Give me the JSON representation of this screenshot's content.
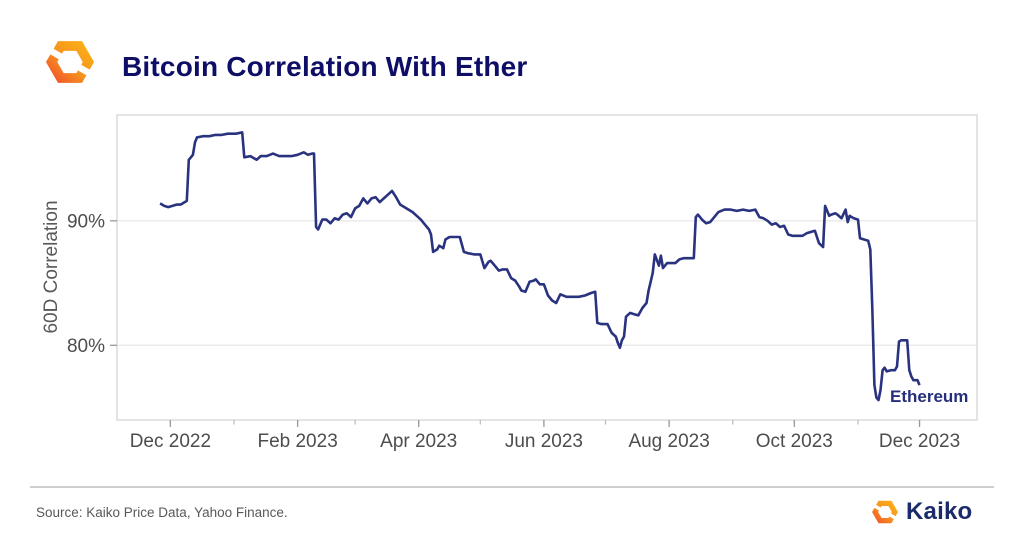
{
  "header": {
    "title": "Bitcoin Correlation With Ether"
  },
  "footer": {
    "source": "Source: Kaiko Price Data, Yahoo Finance.",
    "brand": "Kaiko"
  },
  "colors": {
    "title_navy": "#0E0E66",
    "line_navy": "#2A337F",
    "series_label_navy": "#252F7C",
    "brand_navy": "#1B2A6B",
    "axis_text_gray": "#4D4D4D",
    "axis_title_gray": "#595959",
    "grid_gray": "#EAEAEA",
    "border_gray": "#DBDBDB",
    "logo_orange_light": "#FBAF17",
    "logo_orange_mid": "#F6921E",
    "logo_orange_deep": "#F1582A"
  },
  "chart_data": {
    "type": "line",
    "title": "Bitcoin Correlation With Ether",
    "xlabel": "",
    "ylabel": "60D Correlation",
    "ylim": [
      74,
      98.5
    ],
    "x_domain": [
      "2022-11-05",
      "2023-12-29"
    ],
    "grid": "horizontal-only",
    "legend_position": "end-of-line",
    "y_ticks": [
      {
        "value": 90,
        "label": "90%"
      },
      {
        "value": 80,
        "label": "80%"
      }
    ],
    "x_ticks": [
      {
        "date": "2022-12-01",
        "label": "Dec 2022"
      },
      {
        "date": "2023-02-01",
        "label": "Feb 2023"
      },
      {
        "date": "2023-04-01",
        "label": "Apr 2023"
      },
      {
        "date": "2023-06-01",
        "label": "Jun 2023"
      },
      {
        "date": "2023-08-01",
        "label": "Aug 2023"
      },
      {
        "date": "2023-10-01",
        "label": "Oct 2023"
      },
      {
        "date": "2023-12-01",
        "label": "Dec 2023"
      }
    ],
    "series": [
      {
        "name": "Ethereum",
        "color": "#2A337F",
        "points": [
          [
            "2022-11-26",
            91.4
          ],
          [
            "2022-11-28",
            91.2
          ],
          [
            "2022-11-30",
            91.1
          ],
          [
            "2022-12-02",
            91.2
          ],
          [
            "2022-12-04",
            91.3
          ],
          [
            "2022-12-06",
            91.3
          ],
          [
            "2022-12-08",
            91.5
          ],
          [
            "2022-12-09",
            91.6
          ],
          [
            "2022-12-10",
            94.9
          ],
          [
            "2022-12-11",
            95.1
          ],
          [
            "2022-12-12",
            95.3
          ],
          [
            "2022-12-13",
            96.3
          ],
          [
            "2022-12-14",
            96.7
          ],
          [
            "2022-12-17",
            96.8
          ],
          [
            "2022-12-20",
            96.8
          ],
          [
            "2022-12-23",
            96.9
          ],
          [
            "2022-12-26",
            96.9
          ],
          [
            "2022-12-29",
            97.0
          ],
          [
            "2023-01-02",
            97.0
          ],
          [
            "2023-01-05",
            97.1
          ],
          [
            "2023-01-06",
            95.1
          ],
          [
            "2023-01-09",
            95.2
          ],
          [
            "2023-01-12",
            94.9
          ],
          [
            "2023-01-14",
            95.2
          ],
          [
            "2023-01-17",
            95.2
          ],
          [
            "2023-01-20",
            95.4
          ],
          [
            "2023-01-23",
            95.2
          ],
          [
            "2023-01-26",
            95.2
          ],
          [
            "2023-01-29",
            95.2
          ],
          [
            "2023-02-01",
            95.3
          ],
          [
            "2023-02-04",
            95.5
          ],
          [
            "2023-02-06",
            95.3
          ],
          [
            "2023-02-08",
            95.4
          ],
          [
            "2023-02-09",
            95.4
          ],
          [
            "2023-02-10",
            89.5
          ],
          [
            "2023-02-11",
            89.3
          ],
          [
            "2023-02-13",
            90.1
          ],
          [
            "2023-02-15",
            90.1
          ],
          [
            "2023-02-17",
            89.8
          ],
          [
            "2023-02-19",
            90.2
          ],
          [
            "2023-02-21",
            90.1
          ],
          [
            "2023-02-23",
            90.5
          ],
          [
            "2023-02-25",
            90.6
          ],
          [
            "2023-02-27",
            90.3
          ],
          [
            "2023-03-01",
            91.0
          ],
          [
            "2023-03-03",
            91.2
          ],
          [
            "2023-03-05",
            91.8
          ],
          [
            "2023-03-07",
            91.4
          ],
          [
            "2023-03-09",
            91.8
          ],
          [
            "2023-03-11",
            91.9
          ],
          [
            "2023-03-13",
            91.5
          ],
          [
            "2023-03-15",
            91.8
          ],
          [
            "2023-03-17",
            92.1
          ],
          [
            "2023-03-19",
            92.4
          ],
          [
            "2023-03-21",
            91.9
          ],
          [
            "2023-03-23",
            91.3
          ],
          [
            "2023-03-25",
            91.1
          ],
          [
            "2023-03-27",
            90.9
          ],
          [
            "2023-03-29",
            90.7
          ],
          [
            "2023-03-31",
            90.4
          ],
          [
            "2023-04-02",
            90.1
          ],
          [
            "2023-04-04",
            89.7
          ],
          [
            "2023-04-06",
            89.3
          ],
          [
            "2023-04-07",
            88.9
          ],
          [
            "2023-04-08",
            87.5
          ],
          [
            "2023-04-10",
            87.7
          ],
          [
            "2023-04-11",
            88.0
          ],
          [
            "2023-04-13",
            87.8
          ],
          [
            "2023-04-14",
            88.5
          ],
          [
            "2023-04-16",
            88.7
          ],
          [
            "2023-04-19",
            88.7
          ],
          [
            "2023-04-21",
            88.7
          ],
          [
            "2023-04-23",
            87.5
          ],
          [
            "2023-04-25",
            87.4
          ],
          [
            "2023-04-28",
            87.3
          ],
          [
            "2023-05-01",
            87.3
          ],
          [
            "2023-05-03",
            86.2
          ],
          [
            "2023-05-05",
            86.7
          ],
          [
            "2023-05-06",
            86.8
          ],
          [
            "2023-05-08",
            86.4
          ],
          [
            "2023-05-10",
            86.0
          ],
          [
            "2023-05-12",
            86.1
          ],
          [
            "2023-05-14",
            86.1
          ],
          [
            "2023-05-16",
            85.4
          ],
          [
            "2023-05-18",
            85.2
          ],
          [
            "2023-05-20",
            84.7
          ],
          [
            "2023-05-21",
            84.4
          ],
          [
            "2023-05-23",
            84.3
          ],
          [
            "2023-05-25",
            85.1
          ],
          [
            "2023-05-27",
            85.2
          ],
          [
            "2023-05-28",
            85.3
          ],
          [
            "2023-05-30",
            84.9
          ],
          [
            "2023-06-01",
            84.9
          ],
          [
            "2023-06-03",
            84.0
          ],
          [
            "2023-06-05",
            83.6
          ],
          [
            "2023-06-07",
            83.4
          ],
          [
            "2023-06-09",
            84.1
          ],
          [
            "2023-06-12",
            83.9
          ],
          [
            "2023-06-15",
            83.9
          ],
          [
            "2023-06-18",
            83.9
          ],
          [
            "2023-06-21",
            84.0
          ],
          [
            "2023-06-24",
            84.2
          ],
          [
            "2023-06-26",
            84.3
          ],
          [
            "2023-06-27",
            81.8
          ],
          [
            "2023-06-29",
            81.7
          ],
          [
            "2023-07-02",
            81.7
          ],
          [
            "2023-07-04",
            81.0
          ],
          [
            "2023-07-06",
            80.7
          ],
          [
            "2023-07-07",
            80.2
          ],
          [
            "2023-07-08",
            79.8
          ],
          [
            "2023-07-09",
            80.4
          ],
          [
            "2023-07-10",
            80.7
          ],
          [
            "2023-07-11",
            82.3
          ],
          [
            "2023-07-13",
            82.6
          ],
          [
            "2023-07-15",
            82.5
          ],
          [
            "2023-07-17",
            82.4
          ],
          [
            "2023-07-19",
            83.0
          ],
          [
            "2023-07-21",
            83.4
          ],
          [
            "2023-07-22",
            84.4
          ],
          [
            "2023-07-24",
            85.8
          ],
          [
            "2023-07-25",
            87.3
          ],
          [
            "2023-07-27",
            86.4
          ],
          [
            "2023-07-28",
            87.2
          ],
          [
            "2023-07-29",
            86.2
          ],
          [
            "2023-07-31",
            86.6
          ],
          [
            "2023-08-02",
            86.6
          ],
          [
            "2023-08-04",
            86.6
          ],
          [
            "2023-08-06",
            86.9
          ],
          [
            "2023-08-08",
            87.0
          ],
          [
            "2023-08-11",
            87.0
          ],
          [
            "2023-08-13",
            87.0
          ],
          [
            "2023-08-14",
            90.3
          ],
          [
            "2023-08-15",
            90.5
          ],
          [
            "2023-08-17",
            90.1
          ],
          [
            "2023-08-19",
            89.8
          ],
          [
            "2023-08-21",
            89.9
          ],
          [
            "2023-08-23",
            90.3
          ],
          [
            "2023-08-25",
            90.7
          ],
          [
            "2023-08-28",
            90.9
          ],
          [
            "2023-08-31",
            90.9
          ],
          [
            "2023-09-03",
            90.8
          ],
          [
            "2023-09-06",
            90.9
          ],
          [
            "2023-09-09",
            90.8
          ],
          [
            "2023-09-12",
            90.9
          ],
          [
            "2023-09-14",
            90.3
          ],
          [
            "2023-09-16",
            90.2
          ],
          [
            "2023-09-18",
            90.0
          ],
          [
            "2023-09-20",
            89.7
          ],
          [
            "2023-09-22",
            89.8
          ],
          [
            "2023-09-24",
            89.5
          ],
          [
            "2023-09-26",
            89.6
          ],
          [
            "2023-09-28",
            88.9
          ],
          [
            "2023-09-30",
            88.8
          ],
          [
            "2023-10-03",
            88.8
          ],
          [
            "2023-10-05",
            88.8
          ],
          [
            "2023-10-07",
            89.0
          ],
          [
            "2023-10-09",
            89.1
          ],
          [
            "2023-10-11",
            89.2
          ],
          [
            "2023-10-13",
            88.2
          ],
          [
            "2023-10-15",
            87.9
          ],
          [
            "2023-10-16",
            91.2
          ],
          [
            "2023-10-18",
            90.4
          ],
          [
            "2023-10-19",
            90.5
          ],
          [
            "2023-10-21",
            90.6
          ],
          [
            "2023-10-22",
            90.5
          ],
          [
            "2023-10-24",
            90.2
          ],
          [
            "2023-10-26",
            90.9
          ],
          [
            "2023-10-27",
            89.9
          ],
          [
            "2023-10-28",
            90.4
          ],
          [
            "2023-10-30",
            90.2
          ],
          [
            "2023-11-01",
            90.1
          ],
          [
            "2023-11-02",
            88.6
          ],
          [
            "2023-11-04",
            88.5
          ],
          [
            "2023-11-06",
            88.4
          ],
          [
            "2023-11-07",
            87.7
          ],
          [
            "2023-11-08",
            83.0
          ],
          [
            "2023-11-09",
            76.8
          ],
          [
            "2023-11-10",
            75.8
          ],
          [
            "2023-11-11",
            75.6
          ],
          [
            "2023-11-12",
            76.4
          ],
          [
            "2023-11-13",
            78.0
          ],
          [
            "2023-11-14",
            78.2
          ],
          [
            "2023-11-15",
            77.9
          ],
          [
            "2023-11-17",
            78.0
          ],
          [
            "2023-11-19",
            78.0
          ],
          [
            "2023-11-20",
            78.3
          ],
          [
            "2023-11-21",
            80.3
          ],
          [
            "2023-11-22",
            80.4
          ],
          [
            "2023-11-24",
            80.4
          ],
          [
            "2023-11-25",
            80.4
          ],
          [
            "2023-11-26",
            78.0
          ],
          [
            "2023-11-27",
            77.5
          ],
          [
            "2023-11-28",
            77.2
          ],
          [
            "2023-11-30",
            77.2
          ],
          [
            "2023-12-01",
            76.8
          ]
        ]
      }
    ]
  }
}
